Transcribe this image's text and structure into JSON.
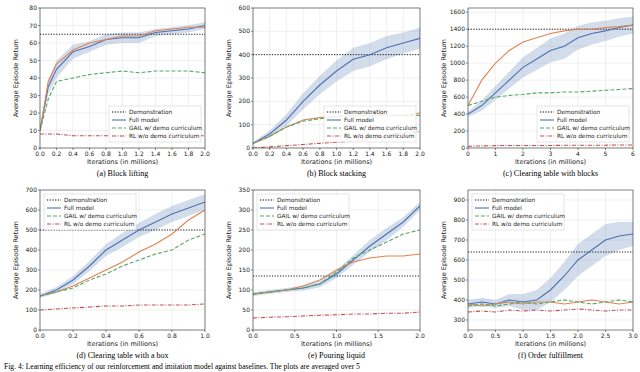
{
  "chart_data": [
    {
      "type": "line",
      "title": "(a) Block lifting",
      "x_label": "Iterations (in millions)",
      "y_label": "Average Episode Return",
      "grid": true,
      "legend": "lower right",
      "xlim": [
        0,
        2
      ],
      "xticks": [
        {
          "value": 0,
          "label": "0.0"
        },
        {
          "value": 0.2,
          "label": "0.2"
        },
        {
          "value": 0.4,
          "label": "0.4"
        },
        {
          "value": 0.6,
          "label": "0.6"
        },
        {
          "value": 0.8,
          "label": "0.8"
        },
        {
          "value": 1,
          "label": "1.0"
        },
        {
          "value": 1.2,
          "label": "1.2"
        },
        {
          "value": 1.4,
          "label": "1.4"
        },
        {
          "value": 1.6,
          "label": "1.6"
        },
        {
          "value": 1.8,
          "label": "1.8"
        },
        {
          "value": 2,
          "label": "2.0"
        }
      ],
      "ylim": [
        0,
        80
      ],
      "yticks": [
        0,
        10,
        20,
        30,
        40,
        50,
        60,
        70,
        80
      ],
      "x": [
        0,
        0.1,
        0.2,
        0.4,
        0.6,
        0.8,
        1.0,
        1.2,
        1.4,
        1.6,
        1.8,
        2.0
      ],
      "series": [
        {
          "name": "Demonstration",
          "color": "#000000",
          "line_style": "dotted",
          "values": [
            65,
            65,
            65,
            65,
            65,
            65,
            65,
            65,
            65,
            65,
            65,
            65
          ]
        },
        {
          "name": "Full model",
          "color": "#4c72b0",
          "line_style": "solid",
          "values": [
            10,
            35,
            45,
            55,
            58,
            62,
            63,
            63,
            66,
            67,
            68,
            70
          ],
          "spread": [
            1,
            4,
            5,
            4,
            3,
            3,
            3,
            3,
            2,
            2,
            2,
            2
          ]
        },
        {
          "color": "#dd8452",
          "line_style": "solid",
          "values": [
            10,
            38,
            48,
            56,
            60,
            62,
            64,
            64,
            67,
            68,
            69,
            69
          ]
        },
        {
          "name": "GAIL w/ demo curriculum",
          "color": "#55a868",
          "line_style": "dashed",
          "values": [
            10,
            28,
            38,
            40,
            42,
            43,
            44,
            43,
            44,
            44,
            44,
            43
          ]
        },
        {
          "name": "RL w/o demo curriculum",
          "color": "#c44e52",
          "line_style": "dashdot",
          "values": [
            8,
            8,
            8,
            7,
            7,
            7,
            7,
            7,
            7,
            8,
            7,
            7
          ]
        }
      ]
    },
    {
      "type": "line",
      "title": "(b) Block stacking",
      "x_label": "Iterations (in millions)",
      "y_label": "Average Episode Return",
      "grid": true,
      "legend": "lower right",
      "xlim": [
        0,
        2
      ],
      "xticks": [
        {
          "value": 0,
          "label": "0.0"
        },
        {
          "value": 0.2,
          "label": "0.2"
        },
        {
          "value": 0.4,
          "label": "0.4"
        },
        {
          "value": 0.6,
          "label": "0.6"
        },
        {
          "value": 0.8,
          "label": "0.8"
        },
        {
          "value": 1,
          "label": "1.0"
        },
        {
          "value": 1.2,
          "label": "1.2"
        },
        {
          "value": 1.4,
          "label": "1.4"
        },
        {
          "value": 1.6,
          "label": "1.6"
        },
        {
          "value": 1.8,
          "label": "1.8"
        },
        {
          "value": 2,
          "label": "2.0"
        }
      ],
      "ylim": [
        0,
        600
      ],
      "yticks": [
        0,
        100,
        200,
        300,
        400,
        500,
        600
      ],
      "x": [
        0,
        0.2,
        0.4,
        0.6,
        0.8,
        1.0,
        1.2,
        1.4,
        1.6,
        1.8,
        2.0
      ],
      "series": [
        {
          "name": "Demonstration",
          "color": "#000000",
          "line_style": "dotted",
          "values": [
            400,
            400,
            400,
            400,
            400,
            400,
            400,
            400,
            400,
            400,
            400
          ]
        },
        {
          "name": "Full model",
          "color": "#4c72b0",
          "line_style": "solid",
          "values": [
            20,
            60,
            120,
            200,
            270,
            330,
            380,
            400,
            430,
            450,
            470
          ],
          "spread": [
            5,
            15,
            25,
            35,
            40,
            45,
            50,
            50,
            50,
            45,
            45
          ]
        },
        {
          "color": "#dd8452",
          "line_style": "solid",
          "values": [
            20,
            50,
            90,
            120,
            130,
            135,
            140,
            140,
            140,
            140,
            150
          ]
        },
        {
          "name": "GAIL w/ demo curriculum",
          "color": "#55a868",
          "line_style": "dashed",
          "values": [
            20,
            50,
            90,
            115,
            125,
            135,
            140,
            140,
            140,
            140,
            140
          ]
        },
        {
          "name": "RL w/o demo curriculum",
          "color": "#c44e52",
          "line_style": "dashdot",
          "values": [
            0,
            5,
            10,
            15,
            20,
            25,
            30,
            40,
            50,
            65,
            70
          ]
        }
      ]
    },
    {
      "type": "line",
      "title": "(c) Clearing table with blocks",
      "x_label": "Iterations (in millions)",
      "y_label": "Average Episode Return",
      "grid": true,
      "legend": "lower right",
      "xlim": [
        0,
        6
      ],
      "xticks": [
        0,
        1,
        2,
        3,
        4,
        5,
        6
      ],
      "ylim": [
        0,
        1650
      ],
      "yticks": [
        0,
        200,
        400,
        600,
        800,
        1000,
        1200,
        1400,
        1600
      ],
      "x": [
        0,
        0.5,
        1,
        1.5,
        2,
        2.5,
        3,
        3.5,
        4,
        4.5,
        5,
        5.5,
        6
      ],
      "series": [
        {
          "name": "Demonstration",
          "color": "#000000",
          "line_style": "dotted",
          "values": [
            1400,
            1400,
            1400,
            1400,
            1400,
            1400,
            1400,
            1400,
            1400,
            1400,
            1400,
            1400,
            1400
          ]
        },
        {
          "name": "Full model",
          "color": "#4c72b0",
          "line_style": "solid",
          "values": [
            400,
            500,
            650,
            800,
            950,
            1050,
            1150,
            1200,
            1300,
            1350,
            1380,
            1420,
            1450
          ],
          "spread": [
            30,
            60,
            80,
            100,
            120,
            130,
            140,
            150,
            140,
            130,
            120,
            110,
            100
          ]
        },
        {
          "color": "#dd8452",
          "line_style": "solid",
          "values": [
            500,
            800,
            1000,
            1150,
            1250,
            1300,
            1350,
            1380,
            1400,
            1400,
            1420,
            1430,
            1450
          ]
        },
        {
          "name": "GAIL w/ demo curriculum",
          "color": "#55a868",
          "line_style": "dashed",
          "values": [
            500,
            550,
            600,
            620,
            630,
            650,
            650,
            660,
            660,
            670,
            680,
            690,
            700
          ]
        },
        {
          "name": "RL w/o demo curriculum",
          "color": "#c44e52",
          "line_style": "dashdot",
          "values": [
            20,
            25,
            28,
            30,
            30,
            30,
            30,
            32,
            32,
            33,
            33,
            35,
            35
          ]
        }
      ]
    },
    {
      "type": "line",
      "title": "(d) Clearing table with a box",
      "x_label": "Iterations (in millions)",
      "y_label": "Average Episode Return",
      "grid": true,
      "legend": "upper left",
      "xlim": [
        0,
        1
      ],
      "xticks": [
        {
          "value": 0,
          "label": "0.0"
        },
        {
          "value": 0.2,
          "label": "0.2"
        },
        {
          "value": 0.4,
          "label": "0.4"
        },
        {
          "value": 0.6,
          "label": "0.6"
        },
        {
          "value": 0.8,
          "label": "0.8"
        },
        {
          "value": 1,
          "label": "1.0"
        }
      ],
      "ylim": [
        0,
        700
      ],
      "yticks": [
        0,
        100,
        200,
        300,
        400,
        500,
        600,
        700
      ],
      "x": [
        0,
        0.1,
        0.2,
        0.3,
        0.4,
        0.5,
        0.6,
        0.7,
        0.8,
        0.9,
        1.0
      ],
      "series": [
        {
          "name": "Demonstration",
          "color": "#000000",
          "line_style": "dotted",
          "values": [
            500,
            500,
            500,
            500,
            500,
            500,
            500,
            500,
            500,
            500,
            500
          ]
        },
        {
          "name": "Full model",
          "color": "#4c72b0",
          "line_style": "solid",
          "values": [
            170,
            200,
            250,
            320,
            400,
            450,
            500,
            540,
            580,
            610,
            640
          ],
          "spread": [
            10,
            15,
            20,
            25,
            30,
            35,
            35,
            40,
            40,
            40,
            40
          ]
        },
        {
          "color": "#dd8452",
          "line_style": "solid",
          "values": [
            170,
            190,
            220,
            260,
            300,
            340,
            390,
            430,
            480,
            550,
            600
          ]
        },
        {
          "name": "GAIL w/ demo curriculum",
          "color": "#55a868",
          "line_style": "dashed",
          "values": [
            170,
            190,
            210,
            250,
            280,
            320,
            350,
            380,
            400,
            450,
            480
          ]
        },
        {
          "name": "RL w/o demo curriculum",
          "color": "#c44e52",
          "line_style": "dashdot",
          "values": [
            100,
            105,
            110,
            115,
            120,
            120,
            125,
            125,
            125,
            125,
            130
          ]
        }
      ]
    },
    {
      "type": "line",
      "title": "(e) Pouring liquid",
      "x_label": "Iterations (in millions)",
      "y_label": "Average Episode Return",
      "grid": true,
      "legend": "upper left",
      "xlim": [
        0,
        2
      ],
      "xticks": [
        {
          "value": 0,
          "label": "0.0"
        },
        {
          "value": 0.5,
          "label": "0.5"
        },
        {
          "value": 1,
          "label": "1.0"
        },
        {
          "value": 1.5,
          "label": "1.5"
        },
        {
          "value": 2,
          "label": "2.0"
        }
      ],
      "ylim": [
        0,
        350
      ],
      "yticks": [
        0,
        50,
        100,
        150,
        200,
        250,
        300,
        350
      ],
      "x": [
        0,
        0.2,
        0.4,
        0.6,
        0.8,
        1.0,
        1.2,
        1.4,
        1.6,
        1.8,
        2.0
      ],
      "series": [
        {
          "name": "Demonstration",
          "color": "#000000",
          "line_style": "dotted",
          "values": [
            135,
            135,
            135,
            135,
            135,
            135,
            135,
            135,
            135,
            135,
            135
          ]
        },
        {
          "name": "Full model",
          "color": "#4c72b0",
          "line_style": "solid",
          "values": [
            90,
            95,
            100,
            105,
            115,
            140,
            175,
            210,
            240,
            270,
            310
          ],
          "spread": [
            5,
            5,
            5,
            6,
            8,
            10,
            12,
            15,
            15,
            12,
            10
          ]
        },
        {
          "color": "#dd8452",
          "line_style": "solid",
          "values": [
            90,
            95,
            100,
            110,
            125,
            150,
            170,
            180,
            185,
            185,
            190
          ]
        },
        {
          "name": "GAIL w/ demo curriculum",
          "color": "#55a868",
          "line_style": "dashed",
          "values": [
            90,
            95,
            100,
            105,
            115,
            145,
            180,
            200,
            220,
            240,
            250
          ]
        },
        {
          "name": "RL w/o demo curriculum",
          "color": "#c44e52",
          "line_style": "dashdot",
          "values": [
            30,
            32,
            33,
            35,
            37,
            38,
            40,
            40,
            42,
            42,
            45
          ]
        }
      ]
    },
    {
      "type": "line",
      "title": "(f) Order fulfillment",
      "x_label": "Iterations (in millions)",
      "y_label": "Average Episode Return",
      "grid": true,
      "legend": "upper left",
      "xlim": [
        0,
        3
      ],
      "xticks": [
        {
          "value": 0,
          "label": "0.0"
        },
        {
          "value": 0.5,
          "label": "0.5"
        },
        {
          "value": 1,
          "label": "1.0"
        },
        {
          "value": 1.5,
          "label": "1.5"
        },
        {
          "value": 2,
          "label": "2.0"
        },
        {
          "value": 2.5,
          "label": "2.5"
        },
        {
          "value": 3,
          "label": "3.0"
        }
      ],
      "ylim": [
        250,
        950
      ],
      "yticks": [
        300,
        400,
        500,
        600,
        700,
        800,
        900
      ],
      "x": [
        0,
        0.25,
        0.5,
        0.75,
        1,
        1.25,
        1.5,
        1.75,
        2,
        2.25,
        2.5,
        2.75,
        3
      ],
      "series": [
        {
          "name": "Demonstration",
          "color": "#000000",
          "line_style": "dotted",
          "values": [
            640,
            640,
            640,
            640,
            640,
            640,
            640,
            640,
            640,
            640,
            640,
            640,
            640
          ]
        },
        {
          "name": "Full model",
          "color": "#4c72b0",
          "line_style": "solid",
          "values": [
            380,
            390,
            380,
            400,
            390,
            400,
            450,
            520,
            600,
            650,
            700,
            720,
            730
          ],
          "spread": [
            20,
            20,
            20,
            30,
            40,
            50,
            60,
            70,
            80,
            80,
            80,
            70,
            60
          ]
        },
        {
          "color": "#dd8452",
          "line_style": "solid",
          "values": [
            380,
            370,
            380,
            390,
            380,
            390,
            390,
            380,
            390,
            400,
            390,
            380,
            390
          ]
        },
        {
          "name": "GAIL w/ demo curriculum",
          "color": "#55a868",
          "line_style": "dashed",
          "values": [
            370,
            380,
            370,
            380,
            390,
            380,
            390,
            400,
            390,
            380,
            390,
            400,
            390
          ]
        },
        {
          "name": "RL w/o demo curriculum",
          "color": "#c44e52",
          "line_style": "dashdot",
          "values": [
            340,
            345,
            340,
            350,
            345,
            350,
            345,
            350,
            355,
            350,
            345,
            350,
            350
          ]
        }
      ]
    }
  ],
  "caption": "Fig. 4: Learning efficiency of our reinforcement and imitation model against baselines. The plots are averaged over 5"
}
